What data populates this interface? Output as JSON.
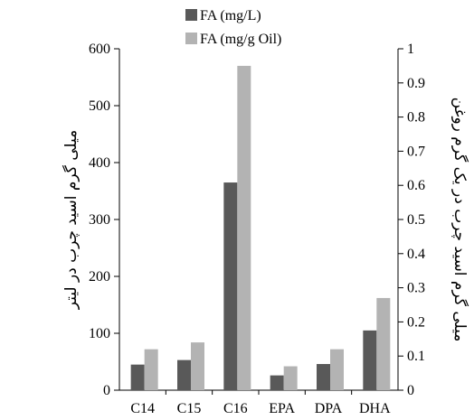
{
  "chart_data": {
    "type": "bar",
    "categories": [
      "C14",
      "C15",
      "C16",
      "EPA",
      "DPA",
      "DHA"
    ],
    "series": [
      {
        "name": "FA (mg/L)",
        "axis": "left",
        "color": "#595959",
        "values": [
          45,
          53,
          365,
          26,
          46,
          105
        ]
      },
      {
        "name": "FA (mg/g Oil)",
        "axis": "right",
        "color": "#b3b3b3",
        "values": [
          0.12,
          0.14,
          0.95,
          0.07,
          0.12,
          0.27
        ]
      }
    ],
    "left_axis": {
      "label": "میلی گرم اسید چرب در لیتر",
      "ylim": [
        0,
        600
      ],
      "ticks": [
        "0",
        "100",
        "200",
        "300",
        "400",
        "500",
        "600"
      ]
    },
    "right_axis": {
      "label": "میلی گرم اسید چرب در یک گرم روغن",
      "ylim": [
        0,
        1
      ],
      "ticks": [
        "0",
        "0.1",
        "0.2",
        "0.3",
        "0.4",
        "0.5",
        "0.6",
        "0.7",
        "0.8",
        "0.9",
        "1"
      ]
    },
    "legend_position": "top-center",
    "grid": false
  }
}
